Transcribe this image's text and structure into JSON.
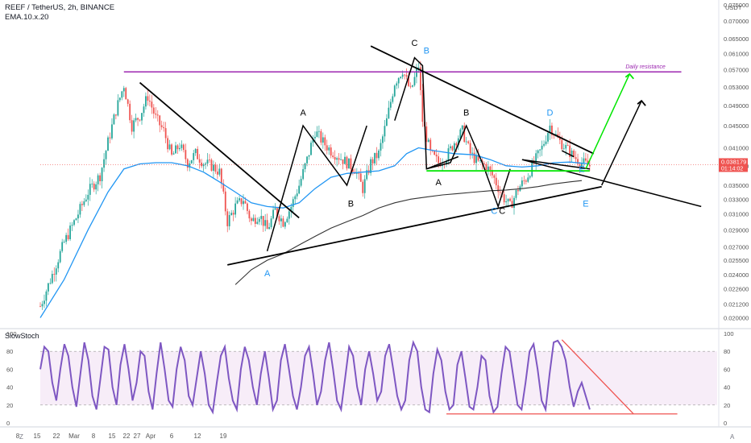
{
  "header": {
    "symbol": "REEF / TetherUS, 2h, BINANCE",
    "indicator": "EMA.10.x.20"
  },
  "stoch_panel": {
    "label": "SlowStoch"
  },
  "axis_corner": {
    "left": "Z",
    "right": "A"
  },
  "colors": {
    "up": "#26a69a",
    "down": "#ef5350",
    "ema": "#2196f3",
    "sma": "#333333",
    "resistance": "#9c27b0",
    "green": "#00e600",
    "red": "#ef5350",
    "stoch": "#7e57c2",
    "wave_blue": "#2196f3"
  },
  "chart_data": [
    {
      "type": "line",
      "title": "REEF / TetherUS, 2h, BINANCE",
      "x_ticks": [
        "8",
        "15",
        "22",
        "Mar",
        "8",
        "15",
        "22",
        "27",
        "Apr",
        "6",
        "12",
        "19"
      ],
      "y_unit": "USDT",
      "y_scale": "log",
      "y_ticks": [
        "0.075000",
        "0.070000",
        "0.065000",
        "0.061000",
        "0.057000",
        "0.053000",
        "0.049000",
        "0.045000",
        "0.041000",
        "0.038000",
        "0.035000",
        "0.033000",
        "0.031000",
        "0.029000",
        "0.027000",
        "0.025500",
        "0.024000",
        "0.022600",
        "0.021200",
        "0.020000"
      ],
      "last_price": {
        "value": "0.038179",
        "countdown": "01:14:02"
      },
      "ylim": [
        0.0193,
        0.0755
      ],
      "series": [
        {
          "kind": "price",
          "points": [
            [
              0,
              0.021
            ],
            [
              3,
              0.024
            ],
            [
              6,
              0.0275
            ],
            [
              9,
              0.0305
            ],
            [
              12,
              0.034
            ],
            [
              15,
              0.0365
            ],
            [
              17,
              0.042
            ],
            [
              19,
              0.048
            ],
            [
              21,
              0.0535
            ],
            [
              23,
              0.045
            ],
            [
              25,
              0.047
            ],
            [
              27,
              0.051
            ],
            [
              29,
              0.0465
            ],
            [
              31,
              0.044
            ],
            [
              33,
              0.0395
            ],
            [
              35,
              0.0415
            ],
            [
              37,
              0.0385
            ],
            [
              39,
              0.04
            ],
            [
              41,
              0.0385
            ],
            [
              43,
              0.038
            ],
            [
              45,
              0.037
            ],
            [
              47,
              0.03
            ],
            [
              49,
              0.032
            ],
            [
              51,
              0.033
            ],
            [
              53,
              0.03
            ],
            [
              55,
              0.031
            ],
            [
              57,
              0.029
            ],
            [
              59,
              0.0315
            ],
            [
              61,
              0.03
            ],
            [
              63,
              0.032
            ],
            [
              65,
              0.035
            ],
            [
              67,
              0.039
            ],
            [
              69,
              0.044
            ],
            [
              71,
              0.042
            ],
            [
              73,
              0.0405
            ],
            [
              75,
              0.0395
            ],
            [
              77,
              0.0385
            ],
            [
              79,
              0.0375
            ],
            [
              81,
              0.0345
            ],
            [
              83,
              0.0385
            ],
            [
              85,
              0.04
            ],
            [
              87,
              0.046
            ],
            [
              89,
              0.054
            ],
            [
              91,
              0.057
            ],
            [
              93,
              0.052
            ],
            [
              95,
              0.058
            ],
            [
              96,
              0.046
            ],
            [
              98,
              0.04
            ],
            [
              100,
              0.0385
            ],
            [
              102,
              0.0395
            ],
            [
              104,
              0.042
            ],
            [
              106,
              0.044
            ],
            [
              108,
              0.04
            ],
            [
              110,
              0.0385
            ],
            [
              112,
              0.038
            ],
            [
              114,
              0.036
            ],
            [
              116,
              0.0335
            ],
            [
              118,
              0.032
            ],
            [
              120,
              0.0345
            ],
            [
              122,
              0.036
            ],
            [
              124,
              0.0385
            ],
            [
              126,
              0.041
            ],
            [
              128,
              0.045
            ],
            [
              130,
              0.0425
            ],
            [
              132,
              0.041
            ],
            [
              134,
              0.0395
            ],
            [
              136,
              0.0385
            ],
            [
              138,
              0.038
            ]
          ]
        },
        {
          "kind": "ema",
          "points": [
            [
              0,
              0.02
            ],
            [
              6,
              0.0235
            ],
            [
              12,
              0.029
            ],
            [
              17,
              0.034
            ],
            [
              21,
              0.0375
            ],
            [
              25,
              0.0383
            ],
            [
              29,
              0.0385
            ],
            [
              33,
              0.0385
            ],
            [
              37,
              0.038
            ],
            [
              41,
              0.037
            ],
            [
              45,
              0.0355
            ],
            [
              49,
              0.034
            ],
            [
              53,
              0.0325
            ],
            [
              57,
              0.032
            ],
            [
              61,
              0.0318
            ],
            [
              65,
              0.0325
            ],
            [
              69,
              0.0345
            ],
            [
              73,
              0.0362
            ],
            [
              77,
              0.0368
            ],
            [
              81,
              0.037
            ],
            [
              85,
              0.0372
            ],
            [
              89,
              0.038
            ],
            [
              92,
              0.04
            ],
            [
              95,
              0.041
            ],
            [
              99,
              0.0405
            ],
            [
              104,
              0.04
            ],
            [
              109,
              0.0398
            ],
            [
              113,
              0.039
            ],
            [
              117,
              0.038
            ],
            [
              121,
              0.0378
            ],
            [
              125,
              0.038
            ],
            [
              129,
              0.0385
            ],
            [
              133,
              0.0386
            ],
            [
              138,
              0.0383
            ]
          ]
        },
        {
          "kind": "sma",
          "points": [
            [
              49,
              0.023
            ],
            [
              53,
              0.0245
            ],
            [
              57,
              0.0255
            ],
            [
              61,
              0.0262
            ],
            [
              65,
              0.0272
            ],
            [
              69,
              0.0282
            ],
            [
              73,
              0.0292
            ],
            [
              77,
              0.03
            ],
            [
              81,
              0.0308
            ],
            [
              85,
              0.0318
            ],
            [
              89,
              0.0325
            ],
            [
              93,
              0.033
            ],
            [
              97,
              0.0333
            ],
            [
              101,
              0.0336
            ],
            [
              105,
              0.0338
            ],
            [
              109,
              0.034
            ],
            [
              113,
              0.0342
            ],
            [
              117,
              0.0343
            ],
            [
              121,
              0.0345
            ],
            [
              125,
              0.0348
            ],
            [
              129,
              0.0352
            ],
            [
              133,
              0.0355
            ],
            [
              136,
              0.0357
            ]
          ]
        }
      ],
      "annotations": {
        "resistance_label": "Daily resistance",
        "wave_labels": [
          {
            "text": "A",
            "color": "blue"
          },
          {
            "text": "A",
            "color": "black"
          },
          {
            "text": "B",
            "color": "black"
          },
          {
            "text": "C",
            "color": "black"
          },
          {
            "text": "B",
            "color": "blue"
          },
          {
            "text": "A",
            "color": "black"
          },
          {
            "text": "B",
            "color": "black"
          },
          {
            "text": "C",
            "color": "blue"
          },
          {
            "text": "C",
            "color": "black"
          },
          {
            "text": "D",
            "color": "blue"
          },
          {
            "text": "E",
            "color": "blue"
          },
          {
            "text": "E",
            "color": "blue"
          }
        ]
      }
    },
    {
      "type": "line",
      "title": "SlowStoch",
      "y_ticks": [
        "100",
        "80",
        "60",
        "40",
        "20",
        "0"
      ],
      "ylim": [
        0,
        100
      ],
      "bands": [
        20,
        80
      ],
      "series": [
        {
          "kind": "stoch",
          "values": [
            60,
            85,
            80,
            45,
            25,
            60,
            88,
            75,
            40,
            18,
            55,
            90,
            70,
            30,
            15,
            50,
            85,
            82,
            40,
            20,
            65,
            88,
            60,
            25,
            45,
            80,
            75,
            35,
            15,
            55,
            90,
            60,
            25,
            18,
            60,
            85,
            70,
            30,
            20,
            50,
            80,
            55,
            20,
            12,
            45,
            75,
            85,
            50,
            25,
            15,
            60,
            85,
            70,
            40,
            20,
            55,
            80,
            50,
            15,
            25,
            70,
            88,
            60,
            30,
            15,
            40,
            75,
            85,
            55,
            20,
            35,
            70,
            90,
            60,
            25,
            15,
            50,
            85,
            75,
            40,
            20,
            60,
            80,
            55,
            25,
            35,
            75,
            88,
            60,
            30,
            15,
            25,
            70,
            90,
            80,
            40,
            15,
            12,
            55,
            82,
            70,
            35,
            15,
            20,
            65,
            80,
            50,
            18,
            15,
            40,
            75,
            70,
            30,
            12,
            18,
            55,
            85,
            80,
            50,
            20,
            15,
            45,
            80,
            88,
            60,
            25,
            15,
            55,
            90,
            92,
            85,
            70,
            40,
            18,
            35,
            45,
            30,
            15
          ]
        }
      ]
    }
  ]
}
